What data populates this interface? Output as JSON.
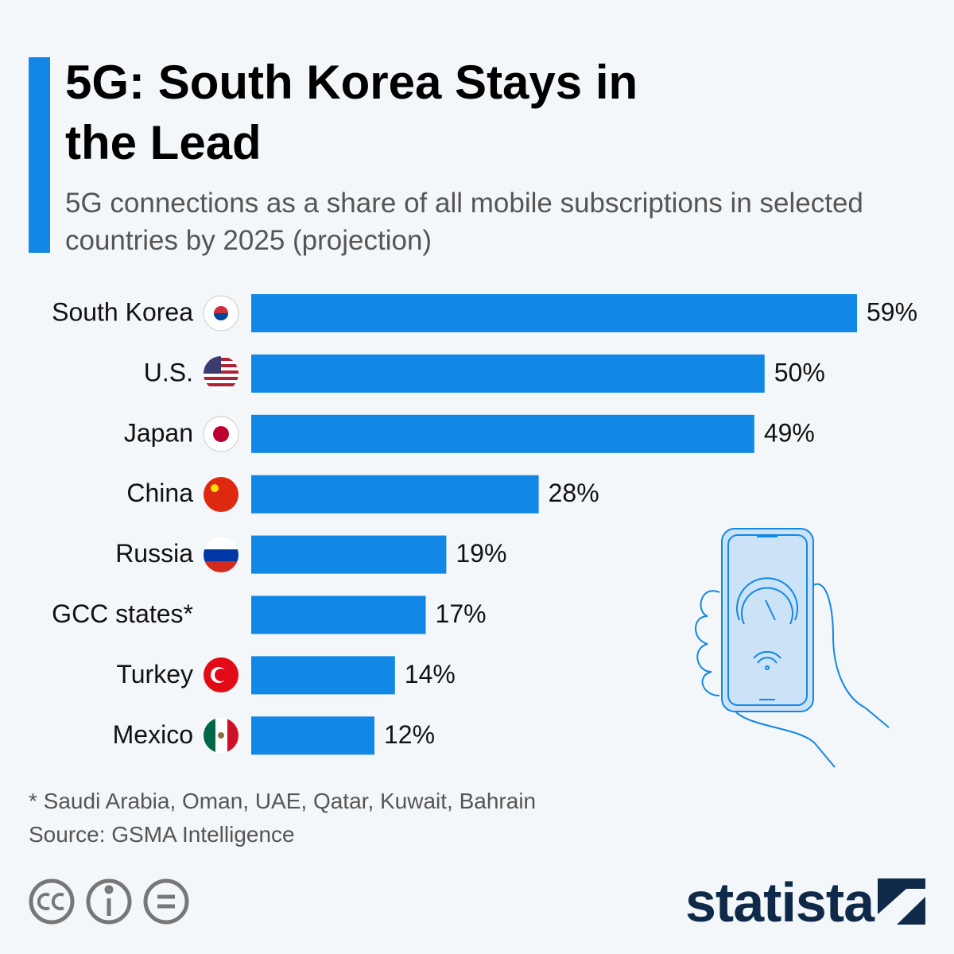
{
  "chart_data": {
    "type": "bar",
    "orientation": "horizontal",
    "title": "5G: South Korea Stays in the Lead",
    "subtitle": "5G connections as a share of all mobile subscriptions in selected countries by 2025 (projection)",
    "categories": [
      "South Korea",
      "U.S.",
      "Japan",
      "China",
      "Russia",
      "GCC states*",
      "Turkey",
      "Mexico"
    ],
    "values": [
      59,
      50,
      49,
      28,
      19,
      17,
      14,
      12
    ],
    "value_labels": [
      "59%",
      "50%",
      "49%",
      "28%",
      "19%",
      "17%",
      "14%",
      "12%"
    ],
    "color": "#1187e6",
    "footnote": "* Saudi Arabia, Oman, UAE, Qatar, Kuwait, Bahrain",
    "source": "Source: GSMA Intelligence"
  },
  "logo": "statista"
}
